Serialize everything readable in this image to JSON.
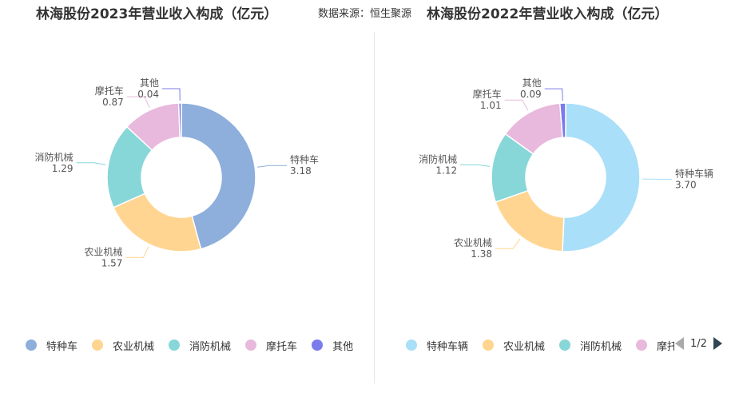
{
  "source_label": "数据来源：恒生聚源",
  "chart_data": [
    {
      "type": "pie",
      "title": "林海股份2023年营业收入构成（亿元）",
      "donut": true,
      "categories": [
        "特种车",
        "农业机械",
        "消防机械",
        "摩托车",
        "其他"
      ],
      "values": [
        3.18,
        1.57,
        1.29,
        0.87,
        0.04
      ],
      "colors": [
        "#8eaedc",
        "#ffd591",
        "#87d6d8",
        "#e8b9dc",
        "#7b7bed"
      ],
      "legend": {
        "position": "bottom",
        "items": [
          "特种车",
          "农业机械",
          "消防机械",
          "摩托车",
          "其他"
        ]
      }
    },
    {
      "type": "pie",
      "title": "林海股份2022年营业收入构成（亿元）",
      "donut": true,
      "categories": [
        "特种车辆",
        "农业机械",
        "消防机械",
        "摩托车",
        "其他"
      ],
      "values": [
        3.7,
        1.38,
        1.12,
        1.01,
        0.09
      ],
      "colors": [
        "#a9dff8",
        "#ffd591",
        "#87d6d8",
        "#e8b9dc",
        "#7b7bed"
      ],
      "legend": {
        "position": "bottom",
        "items": [
          "特种车辆",
          "农业机械",
          "消防机械",
          "摩托托"
        ],
        "page": "1/2"
      }
    }
  ]
}
